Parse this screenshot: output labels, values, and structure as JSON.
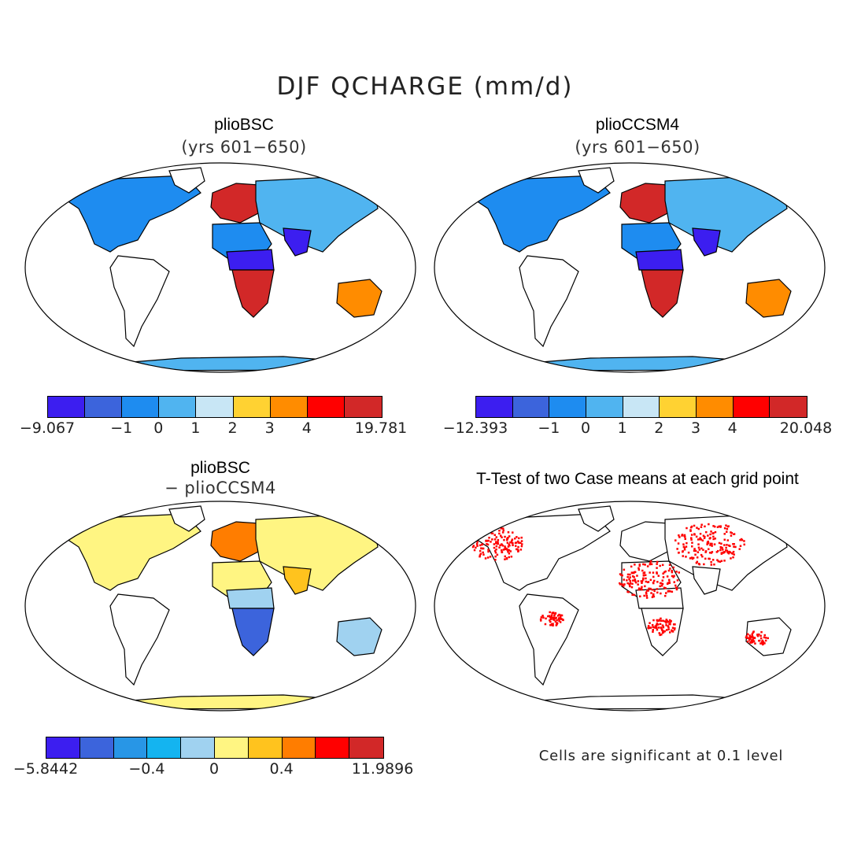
{
  "figure": {
    "title": "DJF QCHARGE (mm/d)",
    "significance_note": "Cells are significant at 0.1 level"
  },
  "panels": [
    {
      "id": "pliobsc",
      "title": "plioBSC",
      "subtitle": "(yrs 601−650)",
      "colorbar": {
        "colors": [
          "#3c1ef0",
          "#3c64dc",
          "#1e8cf0",
          "#50b4f0",
          "#c8e6f5",
          "#ffd232",
          "#ff8c00",
          "#ff0000",
          "#d22828"
        ],
        "labels": [
          "−9.067",
          "−1",
          "0",
          "1",
          "2",
          "3",
          "4",
          "19.781"
        ],
        "label_positions": [
          0,
          2,
          3,
          4,
          5,
          6,
          7,
          9
        ]
      },
      "region_colors": {
        "north_america": "#1e8cf0",
        "europe_west": "#d22828",
        "africa_center": "#3c1ef0",
        "africa_south": "#d22828",
        "amazon": "#d22828",
        "asia": "#50b4f0",
        "india": "#3c1ef0",
        "australia": "#ff8c00",
        "antarctica": "#50b4f0"
      }
    },
    {
      "id": "plioccsm4",
      "title": "plioCCSM4",
      "subtitle": "(yrs 601−650)",
      "colorbar": {
        "colors": [
          "#3c1ef0",
          "#3c64dc",
          "#1e8cf0",
          "#50b4f0",
          "#c8e6f5",
          "#ffd232",
          "#ff8c00",
          "#ff0000",
          "#d22828"
        ],
        "labels": [
          "−12.393",
          "−1",
          "0",
          "1",
          "2",
          "3",
          "4",
          "20.048"
        ],
        "label_positions": [
          0,
          2,
          3,
          4,
          5,
          6,
          7,
          9
        ]
      },
      "region_colors": {
        "north_america": "#1e8cf0",
        "europe_west": "#d22828",
        "africa_center": "#3c1ef0",
        "africa_south": "#d22828",
        "amazon": "#d22828",
        "asia": "#50b4f0",
        "india": "#3c1ef0",
        "australia": "#ff8c00",
        "antarctica": "#50b4f0"
      }
    },
    {
      "id": "difference",
      "title": "plioBSC",
      "subtitle": "− plioCCSM4",
      "colorbar": {
        "colors": [
          "#3c1ef0",
          "#3c64dc",
          "#2896e6",
          "#14b4f0",
          "#a0d2f0",
          "#fff582",
          "#ffc31e",
          "#ff7d00",
          "#ff0000",
          "#d22828"
        ],
        "labels": [
          "−5.8442",
          "−0.4",
          "0",
          "0.4",
          "11.9896"
        ],
        "label_positions": [
          0,
          3,
          5,
          7,
          10
        ]
      },
      "region_colors": {
        "north_america": "#fff582",
        "europe_west": "#ff7d00",
        "africa_center": "#a0d2f0",
        "africa_south": "#3c64dc",
        "amazon": "#3c64dc",
        "asia": "#fff582",
        "india": "#ffc31e",
        "australia": "#a0d2f0",
        "antarctica": "#fff582"
      }
    },
    {
      "id": "ttest",
      "title": "T-Test of two Case means at each grid point",
      "significance_color": "#ff0000"
    }
  ]
}
